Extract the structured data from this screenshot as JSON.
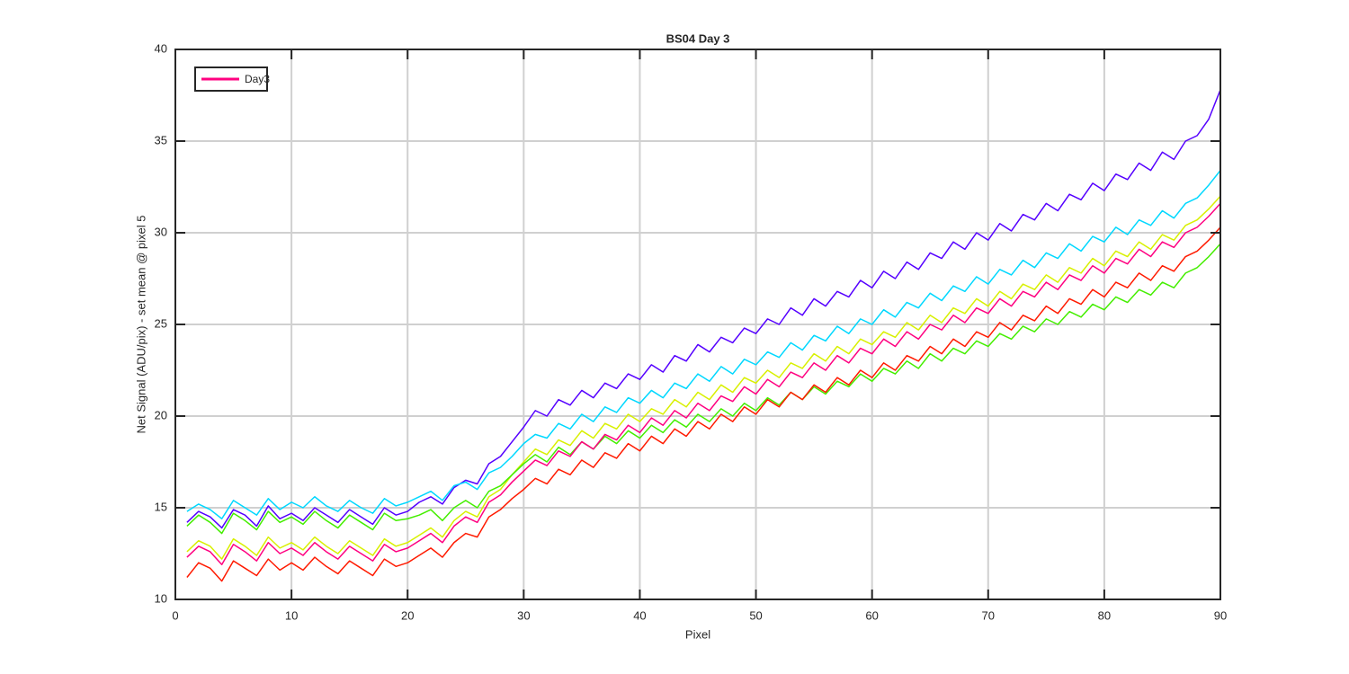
{
  "chart_data": {
    "type": "line",
    "title": "BS04 Day 3",
    "x_label": "Pixel",
    "y_label": "Net Signal (ADU/pix) - set mean @ pixel 5",
    "xlim": [
      0,
      90
    ],
    "ylim": [
      10,
      40
    ],
    "xticks": [
      0,
      10,
      20,
      30,
      40,
      50,
      60,
      70,
      80,
      90
    ],
    "yticks": [
      10,
      15,
      20,
      25,
      30,
      35,
      40
    ],
    "grid": true,
    "legend_position": "upper-left",
    "x": [
      1,
      2,
      3,
      4,
      5,
      6,
      7,
      8,
      9,
      10,
      11,
      12,
      13,
      14,
      15,
      16,
      17,
      18,
      19,
      20,
      21,
      22,
      23,
      24,
      25,
      26,
      27,
      28,
      29,
      30,
      31,
      32,
      33,
      34,
      35,
      36,
      37,
      38,
      39,
      40,
      41,
      42,
      43,
      44,
      45,
      46,
      47,
      48,
      49,
      50,
      51,
      52,
      53,
      54,
      55,
      56,
      57,
      58,
      59,
      60,
      61,
      62,
      63,
      64,
      65,
      66,
      67,
      68,
      69,
      70,
      71,
      72,
      73,
      74,
      75,
      76,
      77,
      78,
      79,
      80,
      81,
      82,
      83,
      84,
      85,
      86,
      87,
      88,
      89,
      90
    ],
    "series": [
      {
        "color": "#5500ff",
        "values": [
          14.2,
          14.8,
          14.5,
          13.9,
          14.9,
          14.6,
          14.0,
          15.1,
          14.4,
          14.7,
          14.3,
          15.0,
          14.6,
          14.2,
          14.9,
          14.5,
          14.1,
          15.0,
          14.6,
          14.8,
          15.3,
          15.6,
          15.2,
          16.1,
          16.5,
          16.3,
          17.4,
          17.8,
          18.6,
          19.4,
          20.3,
          20.0,
          20.9,
          20.6,
          21.4,
          21.0,
          21.8,
          21.5,
          22.3,
          22.0,
          22.8,
          22.4,
          23.3,
          23.0,
          23.9,
          23.5,
          24.3,
          24.0,
          24.8,
          24.5,
          25.3,
          25.0,
          25.9,
          25.5,
          26.4,
          26.0,
          26.8,
          26.5,
          27.4,
          27.0,
          27.9,
          27.5,
          28.4,
          28.0,
          28.9,
          28.6,
          29.5,
          29.1,
          30.0,
          29.6,
          30.5,
          30.1,
          31.0,
          30.7,
          31.6,
          31.2,
          32.1,
          31.8,
          32.7,
          32.3,
          33.2,
          32.9,
          33.8,
          33.4,
          34.4,
          34.0,
          35.0,
          35.3,
          36.2,
          37.8
        ]
      },
      {
        "color": "#00d8ff",
        "values": [
          14.8,
          15.2,
          14.9,
          14.4,
          15.4,
          15.0,
          14.6,
          15.5,
          14.9,
          15.3,
          15.0,
          15.6,
          15.1,
          14.8,
          15.4,
          15.0,
          14.7,
          15.5,
          15.1,
          15.3,
          15.6,
          15.9,
          15.4,
          16.2,
          16.4,
          16.0,
          16.9,
          17.2,
          17.8,
          18.5,
          19.0,
          18.8,
          19.6,
          19.3,
          20.1,
          19.7,
          20.5,
          20.2,
          21.0,
          20.7,
          21.4,
          21.0,
          21.8,
          21.5,
          22.3,
          21.9,
          22.7,
          22.3,
          23.1,
          22.8,
          23.5,
          23.2,
          24.0,
          23.6,
          24.4,
          24.1,
          24.9,
          24.5,
          25.3,
          25.0,
          25.8,
          25.4,
          26.2,
          25.9,
          26.7,
          26.3,
          27.1,
          26.8,
          27.6,
          27.2,
          28.0,
          27.7,
          28.5,
          28.1,
          28.9,
          28.6,
          29.4,
          29.0,
          29.8,
          29.5,
          30.3,
          29.9,
          30.7,
          30.4,
          31.2,
          30.8,
          31.6,
          31.9,
          32.6,
          33.4
        ]
      },
      {
        "color": "#d8f000",
        "values": [
          12.6,
          13.2,
          12.9,
          12.2,
          13.3,
          12.9,
          12.4,
          13.4,
          12.8,
          13.1,
          12.7,
          13.4,
          12.9,
          12.5,
          13.2,
          12.8,
          12.4,
          13.3,
          12.9,
          13.1,
          13.5,
          13.9,
          13.4,
          14.3,
          14.8,
          14.5,
          15.6,
          16.0,
          16.8,
          17.5,
          18.2,
          17.9,
          18.7,
          18.4,
          19.2,
          18.8,
          19.6,
          19.3,
          20.1,
          19.7,
          20.4,
          20.1,
          20.9,
          20.5,
          21.3,
          20.9,
          21.7,
          21.3,
          22.1,
          21.8,
          22.5,
          22.1,
          22.9,
          22.6,
          23.4,
          23.0,
          23.8,
          23.4,
          24.2,
          23.9,
          24.6,
          24.3,
          25.1,
          24.7,
          25.5,
          25.1,
          25.9,
          25.6,
          26.4,
          26.0,
          26.8,
          26.4,
          27.2,
          26.9,
          27.7,
          27.3,
          28.1,
          27.8,
          28.6,
          28.2,
          29.0,
          28.7,
          29.5,
          29.1,
          29.9,
          29.6,
          30.4,
          30.7,
          31.3,
          32.0
        ]
      },
      {
        "color": "#44ee00",
        "values": [
          14.0,
          14.6,
          14.2,
          13.6,
          14.7,
          14.3,
          13.8,
          14.8,
          14.2,
          14.5,
          14.1,
          14.8,
          14.3,
          13.9,
          14.6,
          14.2,
          13.8,
          14.7,
          14.3,
          14.4,
          14.6,
          14.9,
          14.3,
          15.0,
          15.4,
          15.0,
          15.9,
          16.2,
          16.8,
          17.4,
          17.9,
          17.5,
          18.3,
          17.9,
          18.6,
          18.2,
          18.9,
          18.5,
          19.2,
          18.8,
          19.5,
          19.1,
          19.8,
          19.4,
          20.1,
          19.7,
          20.4,
          20.0,
          20.7,
          20.3,
          21.0,
          20.6,
          21.3,
          20.9,
          21.6,
          21.2,
          21.9,
          21.6,
          22.3,
          21.9,
          22.6,
          22.3,
          23.0,
          22.6,
          23.4,
          23.0,
          23.7,
          23.4,
          24.1,
          23.8,
          24.5,
          24.2,
          24.9,
          24.6,
          25.3,
          25.0,
          25.7,
          25.4,
          26.1,
          25.8,
          26.5,
          26.2,
          26.9,
          26.6,
          27.3,
          27.0,
          27.8,
          28.1,
          28.7,
          29.4
        ]
      },
      {
        "color": "#ff1a00",
        "values": [
          11.2,
          12.0,
          11.7,
          11.0,
          12.1,
          11.7,
          11.3,
          12.2,
          11.6,
          12.0,
          11.6,
          12.3,
          11.8,
          11.4,
          12.1,
          11.7,
          11.3,
          12.2,
          11.8,
          12.0,
          12.4,
          12.8,
          12.3,
          13.1,
          13.6,
          13.4,
          14.5,
          14.9,
          15.5,
          16.0,
          16.6,
          16.3,
          17.1,
          16.8,
          17.6,
          17.2,
          18.0,
          17.7,
          18.5,
          18.1,
          18.9,
          18.5,
          19.3,
          18.9,
          19.7,
          19.3,
          20.1,
          19.7,
          20.5,
          20.1,
          20.9,
          20.5,
          21.3,
          20.9,
          21.7,
          21.3,
          22.1,
          21.7,
          22.5,
          22.1,
          22.9,
          22.5,
          23.3,
          23.0,
          23.8,
          23.4,
          24.2,
          23.8,
          24.6,
          24.3,
          25.1,
          24.7,
          25.5,
          25.2,
          26.0,
          25.6,
          26.4,
          26.1,
          26.9,
          26.5,
          27.3,
          27.0,
          27.8,
          27.4,
          28.2,
          27.9,
          28.7,
          29.0,
          29.6,
          30.3
        ]
      },
      {
        "name": "Day3",
        "color": "#ff0080",
        "values": [
          12.3,
          12.9,
          12.6,
          11.9,
          13.0,
          12.6,
          12.1,
          13.1,
          12.5,
          12.8,
          12.4,
          13.1,
          12.6,
          12.2,
          12.9,
          12.5,
          12.1,
          13.0,
          12.6,
          12.8,
          13.2,
          13.6,
          13.1,
          14.0,
          14.5,
          14.2,
          15.3,
          15.7,
          16.4,
          17.0,
          17.6,
          17.3,
          18.1,
          17.8,
          18.6,
          18.2,
          19.0,
          18.7,
          19.5,
          19.1,
          19.9,
          19.5,
          20.3,
          19.9,
          20.7,
          20.3,
          21.1,
          20.8,
          21.6,
          21.2,
          22.0,
          21.6,
          22.4,
          22.1,
          22.9,
          22.5,
          23.3,
          22.9,
          23.7,
          23.4,
          24.2,
          23.8,
          24.6,
          24.2,
          25.0,
          24.7,
          25.5,
          25.1,
          25.9,
          25.6,
          26.4,
          26.0,
          26.8,
          26.5,
          27.3,
          26.9,
          27.7,
          27.4,
          28.2,
          27.8,
          28.6,
          28.3,
          29.1,
          28.7,
          29.5,
          29.2,
          30.0,
          30.3,
          30.9,
          31.6
        ]
      }
    ]
  }
}
